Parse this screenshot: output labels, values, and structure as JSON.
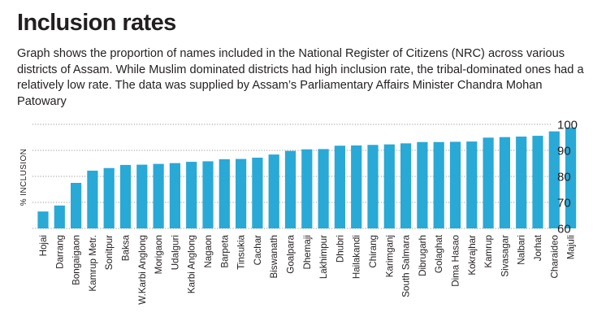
{
  "header": {
    "title": "Inclusion rates",
    "subtitle": "Graph shows the proportion of names included in the National Register of Citizens (NRC) across various districts of Assam. While Muslim dominated districts had high inclusion rate, the tribal-dominated ones had a relatively low rate. The data was supplied by Assam’s Parliamentary Affairs Minister Chandra Mohan Patowary"
  },
  "colors": {
    "bar": "#29a9d6",
    "grid": "#9a9a9a"
  },
  "chart_data": {
    "type": "bar",
    "title": "",
    "xlabel": "",
    "ylabel": "% INCLUSION",
    "ylim": [
      60,
      100
    ],
    "yticks": [
      60,
      70,
      80,
      90,
      100
    ],
    "grid": "horizontal-dotted",
    "y_axis_position": "right",
    "categories": [
      "Hojai",
      "Darrang",
      "Bongaigaon",
      "Kamrup Metr.",
      "Sonitpur",
      "Baksa",
      "W.Karbi Anglong",
      "Morigaon",
      "Udalguri",
      "Karbi Anglong",
      "Nagaon",
      "Barpeta",
      "Tinsukia",
      "Cachar",
      "Biswanath",
      "Goalpara",
      "Dhemaji",
      "Lakhimpur",
      "Dhubri",
      "Hailakandi",
      "Chirang",
      "Karimganj",
      "South Salmara",
      "Dibrugarh",
      "Golaghat",
      "Dima Hasao",
      "Kokrajhar",
      "Kamrup",
      "Sivasagar",
      "Nalbari",
      "Jorhat",
      "Charaideo",
      "Majuli"
    ],
    "values": [
      66.5,
      68.8,
      77.5,
      82.2,
      83.2,
      84.4,
      84.5,
      84.8,
      85.1,
      85.6,
      85.8,
      86.6,
      86.7,
      87.2,
      88.4,
      89.8,
      90.4,
      90.5,
      91.8,
      91.9,
      92.1,
      92.3,
      92.7,
      93.2,
      93.2,
      93.3,
      93.4,
      94.9,
      95.1,
      95.3,
      95.6,
      97.3,
      98.8
    ]
  }
}
